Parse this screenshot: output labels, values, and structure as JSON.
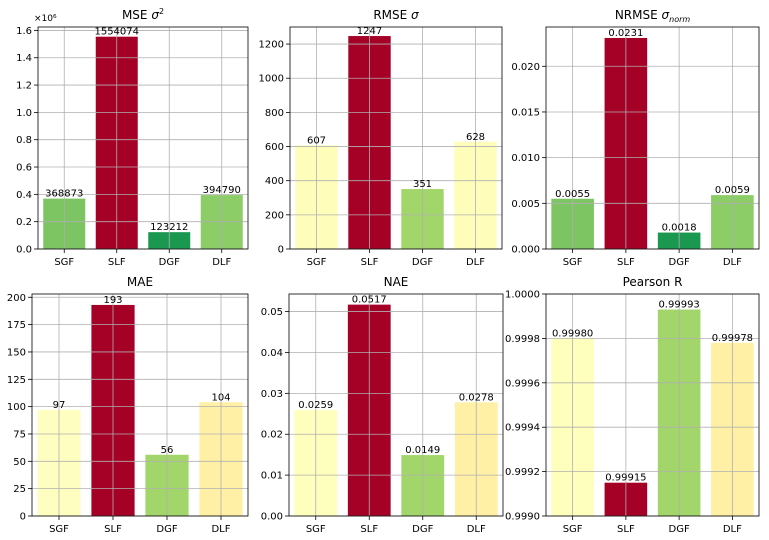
{
  "chart_data": [
    {
      "type": "bar",
      "title": "MSE σ²",
      "categories": [
        "SGF",
        "SLF",
        "DGF",
        "DLF"
      ],
      "values": [
        368873,
        1554074,
        123212,
        394790
      ],
      "value_labels": [
        "368873",
        "1554074",
        "123212",
        "394790"
      ],
      "colors": [
        "#7dc462",
        "#a50026",
        "#1a9850",
        "#8ccd67"
      ],
      "ylim": [
        0,
        1625000
      ],
      "yticks": [
        0,
        200000,
        400000,
        600000,
        800000,
        1000000,
        1200000,
        1400000,
        1600000
      ],
      "ytick_labels": [
        "0.0",
        "0.2",
        "0.4",
        "0.6",
        "0.8",
        "1.0",
        "1.2",
        "1.4",
        "1.6"
      ],
      "scale_label": "×10⁶",
      "grid": true
    },
    {
      "type": "bar",
      "title": "RMSE σ",
      "categories": [
        "SGF",
        "SLF",
        "DGF",
        "DLF"
      ],
      "values": [
        607,
        1247,
        351,
        628
      ],
      "value_labels": [
        "607",
        "1247",
        "351",
        "628"
      ],
      "colors": [
        "#fefeba",
        "#a50026",
        "#a2d66a",
        "#fefeba"
      ],
      "ylim": [
        0,
        1300
      ],
      "yticks": [
        0,
        200,
        400,
        600,
        800,
        1000,
        1200
      ],
      "ytick_labels": [
        "0",
        "200",
        "400",
        "600",
        "800",
        "1000",
        "1200"
      ],
      "grid": true
    },
    {
      "type": "bar",
      "title": "NRMSE σnorm",
      "categories": [
        "SGF",
        "SLF",
        "DGF",
        "DLF"
      ],
      "values": [
        0.0055,
        0.0231,
        0.0018,
        0.0059
      ],
      "value_labels": [
        "0.0055",
        "0.0231",
        "0.0018",
        "0.0059"
      ],
      "colors": [
        "#7dc462",
        "#a50026",
        "#1a9850",
        "#8ccd67"
      ],
      "ylim": [
        0,
        0.0243
      ],
      "yticks": [
        0,
        0.005,
        0.01,
        0.015,
        0.02
      ],
      "ytick_labels": [
        "0.000",
        "0.005",
        "0.010",
        "0.015",
        "0.020"
      ],
      "grid": true
    },
    {
      "type": "bar",
      "title": "MAE",
      "categories": [
        "SGF",
        "SLF",
        "DGF",
        "DLF"
      ],
      "values": [
        97,
        193,
        56,
        104
      ],
      "value_labels": [
        "97",
        "193",
        "56",
        "104"
      ],
      "colors": [
        "#fefec0",
        "#a50026",
        "#a2d66a",
        "#fff0a6"
      ],
      "ylim": [
        0,
        203
      ],
      "yticks": [
        0,
        25,
        50,
        75,
        100,
        125,
        150,
        175,
        200
      ],
      "ytick_labels": [
        "0",
        "25",
        "50",
        "75",
        "100",
        "125",
        "150",
        "175",
        "200"
      ],
      "grid": true
    },
    {
      "type": "bar",
      "title": "NAE",
      "categories": [
        "SGF",
        "SLF",
        "DGF",
        "DLF"
      ],
      "values": [
        0.0259,
        0.0517,
        0.0149,
        0.0278
      ],
      "value_labels": [
        "0.0259",
        "0.0517",
        "0.0149",
        "0.0278"
      ],
      "colors": [
        "#fefebd",
        "#a50026",
        "#a2d66a",
        "#fff0a6"
      ],
      "ylim": [
        0,
        0.0543
      ],
      "yticks": [
        0,
        0.01,
        0.02,
        0.03,
        0.04,
        0.05
      ],
      "ytick_labels": [
        "0.00",
        "0.01",
        "0.02",
        "0.03",
        "0.04",
        "0.05"
      ],
      "grid": true
    },
    {
      "type": "bar",
      "title": "Pearson R",
      "categories": [
        "SGF",
        "SLF",
        "DGF",
        "DLF"
      ],
      "values": [
        0.9998,
        0.99915,
        0.99993,
        0.99978
      ],
      "value_labels": [
        "0.99980",
        "0.99915",
        "0.99993",
        "0.99978"
      ],
      "colors": [
        "#fefebd",
        "#a50026",
        "#a2d66a",
        "#fff0a6"
      ],
      "ylim": [
        0.999,
        1.0
      ],
      "yticks": [
        0.999,
        0.9992,
        0.9994,
        0.9996,
        0.9998,
        1.0
      ],
      "ytick_labels": [
        "0.9990",
        "0.9992",
        "0.9994",
        "0.9996",
        "0.9998",
        "1.0000"
      ],
      "grid": true
    }
  ]
}
